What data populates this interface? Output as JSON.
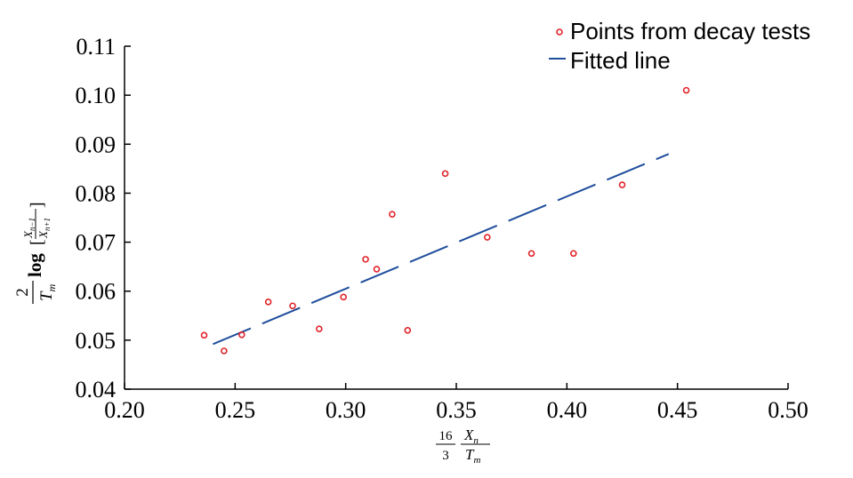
{
  "chart_data": {
    "type": "scatter",
    "title": "",
    "xlabel": "16/3 · X_n / T_m",
    "ylabel": "2/T_m · log[X_{n-1} / X_{n+1}]",
    "xlim": [
      0.2,
      0.5
    ],
    "ylim": [
      0.04,
      0.11
    ],
    "grid": false,
    "legend_position": "top-right",
    "x_ticks": [
      "0.20",
      "0.25",
      "0.30",
      "0.35",
      "0.40",
      "0.45",
      "0.50"
    ],
    "y_ticks": [
      "0.04",
      "0.05",
      "0.06",
      "0.07",
      "0.08",
      "0.09",
      "0.10",
      "0.11"
    ],
    "series": [
      {
        "name": "Points from decay tests",
        "kind": "scatter",
        "color": "#e0242a",
        "marker": "open-circle",
        "points": [
          [
            0.236,
            0.051
          ],
          [
            0.245,
            0.0478
          ],
          [
            0.253,
            0.0511
          ],
          [
            0.265,
            0.0578
          ],
          [
            0.276,
            0.057
          ],
          [
            0.288,
            0.0523
          ],
          [
            0.299,
            0.0588
          ],
          [
            0.309,
            0.0665
          ],
          [
            0.314,
            0.0645
          ],
          [
            0.321,
            0.0757
          ],
          [
            0.328,
            0.052
          ],
          [
            0.345,
            0.084
          ],
          [
            0.364,
            0.071
          ],
          [
            0.384,
            0.0677
          ],
          [
            0.403,
            0.0677
          ],
          [
            0.425,
            0.0817
          ],
          [
            0.454,
            0.101
          ]
        ]
      },
      {
        "name": "Fitted line",
        "kind": "line",
        "style": "long-dash",
        "color": "#1f4e9c",
        "points": [
          [
            0.24,
            0.0492
          ],
          [
            0.446,
            0.088
          ]
        ]
      }
    ],
    "axis_label_parts": {
      "x_num": "16",
      "x_den": "3",
      "x_var_num": "X",
      "x_var_num_sub": "n",
      "x_var_den": "T",
      "x_var_den_sub": "m",
      "y_num": "2",
      "y_den": "T",
      "y_den_sub": "m",
      "y_log": "log",
      "y_bracket_open": "[",
      "y_bracket_close": "]",
      "y_arg_num": "X",
      "y_arg_num_sub": "n−1",
      "y_arg_den": "X",
      "y_arg_den_sub": "n+1"
    }
  }
}
